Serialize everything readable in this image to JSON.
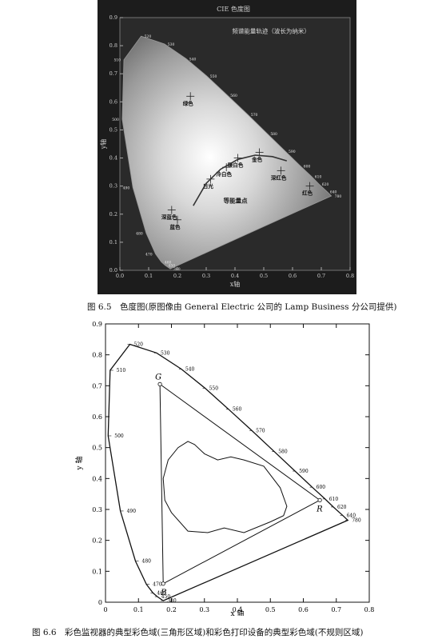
{
  "figure1": {
    "header": "CIE 色度图",
    "ylabel": "y轴",
    "xlabel": "x轴",
    "xticks": [
      "0.0",
      "0.1",
      "0.2",
      "0.3",
      "0.4",
      "0.5",
      "0.6",
      "0.7",
      "0.8"
    ],
    "yticks": [
      "0.0",
      "0.1",
      "0.2",
      "0.3",
      "0.4",
      "0.5",
      "0.6",
      "0.7",
      "0.8",
      "0.9"
    ],
    "locus_label": "频谱能量轨迹（波长为纳米）",
    "wavelengths": [
      {
        "nm": "380",
        "x": 0.175,
        "y": 0.005
      },
      {
        "nm": "450",
        "x": 0.157,
        "y": 0.018
      },
      {
        "nm": "460",
        "x": 0.144,
        "y": 0.03
      },
      {
        "nm": "470",
        "x": 0.124,
        "y": 0.058
      },
      {
        "nm": "480",
        "x": 0.091,
        "y": 0.133
      },
      {
        "nm": "490",
        "x": 0.045,
        "y": 0.295
      },
      {
        "nm": "500",
        "x": 0.008,
        "y": 0.538
      },
      {
        "nm": "510",
        "x": 0.014,
        "y": 0.75
      },
      {
        "nm": "520",
        "x": 0.074,
        "y": 0.834
      },
      {
        "nm": "530",
        "x": 0.155,
        "y": 0.806
      },
      {
        "nm": "540",
        "x": 0.23,
        "y": 0.754
      },
      {
        "nm": "550",
        "x": 0.302,
        "y": 0.692
      },
      {
        "nm": "560",
        "x": 0.373,
        "y": 0.624
      },
      {
        "nm": "570",
        "x": 0.444,
        "y": 0.555
      },
      {
        "nm": "580",
        "x": 0.512,
        "y": 0.487
      },
      {
        "nm": "590",
        "x": 0.575,
        "y": 0.424
      },
      {
        "nm": "600",
        "x": 0.627,
        "y": 0.372
      },
      {
        "nm": "610",
        "x": 0.666,
        "y": 0.334
      },
      {
        "nm": "620",
        "x": 0.691,
        "y": 0.308
      },
      {
        "nm": "640",
        "x": 0.719,
        "y": 0.281
      },
      {
        "nm": "780",
        "x": 0.735,
        "y": 0.265
      }
    ],
    "regions": [
      {
        "label": "绿色",
        "x": 0.245,
        "y": 0.62
      },
      {
        "label": "金色",
        "x": 0.485,
        "y": 0.42
      },
      {
        "label": "暖白色",
        "x": 0.41,
        "y": 0.4
      },
      {
        "label": "冷白色",
        "x": 0.37,
        "y": 0.367
      },
      {
        "label": "日光",
        "x": 0.315,
        "y": 0.325
      },
      {
        "label": "深红色",
        "x": 0.56,
        "y": 0.355
      },
      {
        "label": "红色",
        "x": 0.66,
        "y": 0.3
      },
      {
        "label": "深蓝色",
        "x": 0.18,
        "y": 0.215
      },
      {
        "label": "蓝色",
        "x": 0.2,
        "y": 0.18
      }
    ],
    "planckian_label": "等能量点"
  },
  "caption1": "图 6.5　色度图(原图像由 General Electric 公司的 Lamp Business 分公司提供)",
  "figure2": {
    "ylabel": "y 轴",
    "xlabel": "x 轴",
    "xticks": [
      "0",
      "0.1",
      "0.2",
      "0.3",
      "0.4",
      "0.5",
      "0.6",
      "0.7",
      "0.8"
    ],
    "yticks": [
      "0",
      "0.1",
      "0.2",
      "0.3",
      "0.4",
      "0.5",
      "0.6",
      "0.7",
      "0.8",
      "0.9"
    ],
    "vertex_labels": {
      "G": "G",
      "R": "R",
      "B": "B"
    },
    "triangle": [
      {
        "x": 0.165,
        "y": 0.705
      },
      {
        "x": 0.65,
        "y": 0.33
      },
      {
        "x": 0.175,
        "y": 0.06
      }
    ]
  },
  "caption2": "图 6.6　彩色监视器的典型彩色域(三角形区域)和彩色打印设备的典型彩色域(不规则区域)"
}
